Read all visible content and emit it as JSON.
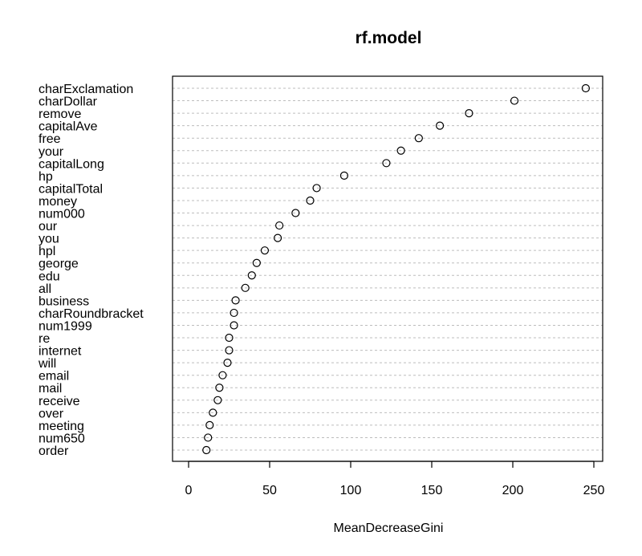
{
  "chart_data": {
    "type": "scatter",
    "title": "rf.model",
    "xlabel": "MeanDecreaseGini",
    "ylabel": "",
    "xlim": [
      -10,
      250
    ],
    "x_ticks": [
      0,
      50,
      100,
      150,
      200,
      250
    ],
    "grid": "dotted horizontal guide lines",
    "categories": [
      "charExclamation",
      "charDollar",
      "remove",
      "capitalAve",
      "free",
      "your",
      "capitalLong",
      "hp",
      "capitalTotal",
      "money",
      "num000",
      "our",
      "you",
      "hpl",
      "george",
      "edu",
      "all",
      "business",
      "charRoundbracket",
      "num1999",
      "re",
      "internet",
      "will",
      "email",
      "mail",
      "receive",
      "over",
      "meeting",
      "num650",
      "order"
    ],
    "values": [
      245,
      201,
      173,
      155,
      142,
      131,
      122,
      96,
      79,
      75,
      66,
      56,
      55,
      47,
      42,
      39,
      35,
      29,
      28,
      28,
      25,
      25,
      24,
      21,
      19,
      18,
      15,
      13,
      12,
      11
    ]
  }
}
